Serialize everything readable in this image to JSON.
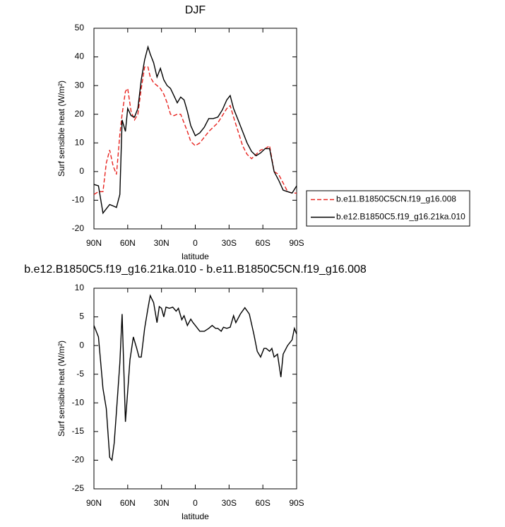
{
  "chart_data": [
    {
      "type": "line",
      "title": "DJF",
      "xlabel": "latitude",
      "ylabel": "Surf sensible heat (W/m²)",
      "x": [
        90,
        86,
        82,
        79,
        76,
        73,
        70,
        67,
        65,
        62,
        60,
        57,
        54,
        51,
        48,
        45,
        42,
        40,
        37,
        34,
        31,
        28,
        25,
        22,
        19,
        16,
        13,
        10,
        7,
        4,
        0,
        -4,
        -8,
        -12,
        -16,
        -20,
        -24,
        -28,
        -31,
        -34,
        -38,
        -42,
        -46,
        -50,
        -54,
        -58,
        -62,
        -66,
        -70,
        -74,
        -78,
        -82,
        -86,
        -90
      ],
      "series": [
        {
          "name": "b.e11.B1850C5CN.f19_g16.008",
          "color": "#e8231f",
          "dash": true,
          "values": [
            -8,
            -7,
            -7,
            3,
            7.5,
            2,
            -1,
            13,
            20,
            28,
            29,
            21,
            18,
            20,
            29,
            36.5,
            36.5,
            33,
            31,
            30,
            29,
            27,
            24,
            20,
            19.5,
            20,
            20,
            17,
            14,
            10.5,
            9,
            10,
            12,
            14,
            15.5,
            17,
            19.5,
            22,
            23,
            19,
            14,
            9,
            6,
            4.5,
            6,
            7.5,
            8,
            9,
            0,
            -1,
            -4,
            -7,
            -7.5,
            -7.5
          ]
        },
        {
          "name": "b.e12.B1850C5.f19_g16.21ka.010",
          "color": "#000000",
          "dash": false,
          "values": [
            -4.5,
            -5,
            -14.5,
            -13,
            -11.5,
            -12,
            -12.5,
            -8,
            18,
            14,
            22,
            19.5,
            19,
            22,
            32,
            39,
            43.5,
            41,
            38,
            33,
            36,
            32,
            30,
            29,
            26.5,
            24,
            26,
            25,
            21,
            16,
            12.5,
            13.5,
            15.5,
            18.5,
            18.5,
            19,
            21.5,
            25,
            26.5,
            22,
            18,
            14,
            10,
            7,
            5.5,
            6.5,
            8,
            8,
            0,
            -3,
            -6.5,
            -7,
            -7.5,
            -5
          ]
        }
      ],
      "xlim": [
        90,
        -90
      ],
      "xticks": [
        {
          "value": 90,
          "label": "90N"
        },
        {
          "value": 60,
          "label": "60N"
        },
        {
          "value": 30,
          "label": "30N"
        },
        0,
        {
          "value": -30,
          "label": "30S"
        },
        {
          "value": -60,
          "label": "60S"
        },
        {
          "value": -90,
          "label": "90S"
        }
      ],
      "ylim": [
        -20,
        50
      ],
      "yticks": [
        -20,
        -10,
        0,
        10,
        20,
        30,
        40,
        50
      ]
    },
    {
      "type": "line",
      "title": "b.e12.B1850C5.f19_g16.21ka.010 - b.e11.B1850C5CN.f19_g16.008",
      "xlabel": "latitude",
      "ylabel": "Surf sensible heat (W/m²)",
      "x": [
        90,
        86,
        82,
        79,
        76,
        74,
        72,
        70,
        67,
        65,
        62,
        60,
        58,
        55,
        52,
        50,
        48,
        45,
        42,
        40,
        37,
        34,
        32,
        30,
        28,
        26,
        23,
        20,
        17,
        15,
        12,
        10,
        7,
        4,
        2,
        0,
        -4,
        -8,
        -12,
        -15,
        -18,
        -20,
        -23,
        -25,
        -28,
        -31,
        -34,
        -36,
        -40,
        -44,
        -48,
        -52,
        -55,
        -58,
        -61,
        -63,
        -66,
        -68,
        -70,
        -73,
        -76,
        -78,
        -82,
        -86,
        -88,
        -90
      ],
      "series": [
        {
          "name": null,
          "color": "#000000",
          "dash": false,
          "values": [
            3.5,
            1.5,
            -7.5,
            -11,
            -19.5,
            -20,
            -17,
            -11.5,
            -3,
            5.5,
            -13.3,
            -8,
            -2.5,
            1.5,
            -0.5,
            -2,
            -2,
            3,
            6.5,
            8.7,
            7.5,
            4,
            6.8,
            6.5,
            5,
            6.7,
            6.5,
            6.7,
            6,
            6.5,
            4.5,
            5.2,
            3.5,
            4.6,
            4,
            3.5,
            2.5,
            2.5,
            3,
            3.5,
            3,
            3,
            2.5,
            3.2,
            3,
            3.2,
            5.2,
            4,
            5.5,
            6.6,
            5.5,
            2,
            -1,
            -2,
            -0.5,
            -0.5,
            -1,
            -0.5,
            -2,
            -1.5,
            -5.5,
            -1.5,
            0,
            1,
            3,
            2
          ]
        }
      ],
      "xlim": [
        90,
        -90
      ],
      "xticks": [
        {
          "value": 90,
          "label": "90N"
        },
        {
          "value": 60,
          "label": "60N"
        },
        {
          "value": 30,
          "label": "30N"
        },
        0,
        {
          "value": -30,
          "label": "30S"
        },
        {
          "value": -60,
          "label": "60S"
        },
        {
          "value": -90,
          "label": "90S"
        }
      ],
      "ylim": [
        -25,
        10
      ],
      "yticks": [
        -25,
        -20,
        -15,
        -10,
        -5,
        0,
        5,
        10
      ]
    }
  ]
}
